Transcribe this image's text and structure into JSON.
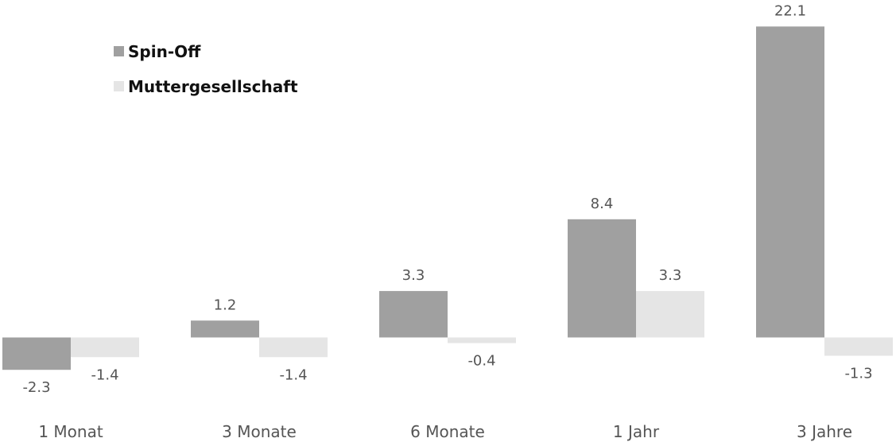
{
  "chart_data": {
    "type": "bar",
    "title": "",
    "xlabel": "",
    "ylabel": "",
    "categories": [
      "1 Monat",
      "3 Monate",
      "6 Monate",
      "1 Jahr",
      "3 Jahre"
    ],
    "series": [
      {
        "name": "Spin-Off",
        "values": [
          -2.3,
          1.2,
          3.3,
          8.4,
          22.1
        ],
        "labels": [
          "-2.3",
          "1.2",
          "3.3",
          "8.4",
          "22.1"
        ],
        "color": "#a0a0a0"
      },
      {
        "name": "Muttergesellschaft",
        "values": [
          -1.4,
          -1.4,
          -0.4,
          3.3,
          -1.3
        ],
        "labels": [
          "-1.4",
          "-1.4",
          "-0.4",
          "3.3",
          "-1.3"
        ],
        "color": "#e5e5e5"
      }
    ],
    "ylim": [
      -3,
      23
    ],
    "grid": false,
    "legend_position": "top-left"
  }
}
